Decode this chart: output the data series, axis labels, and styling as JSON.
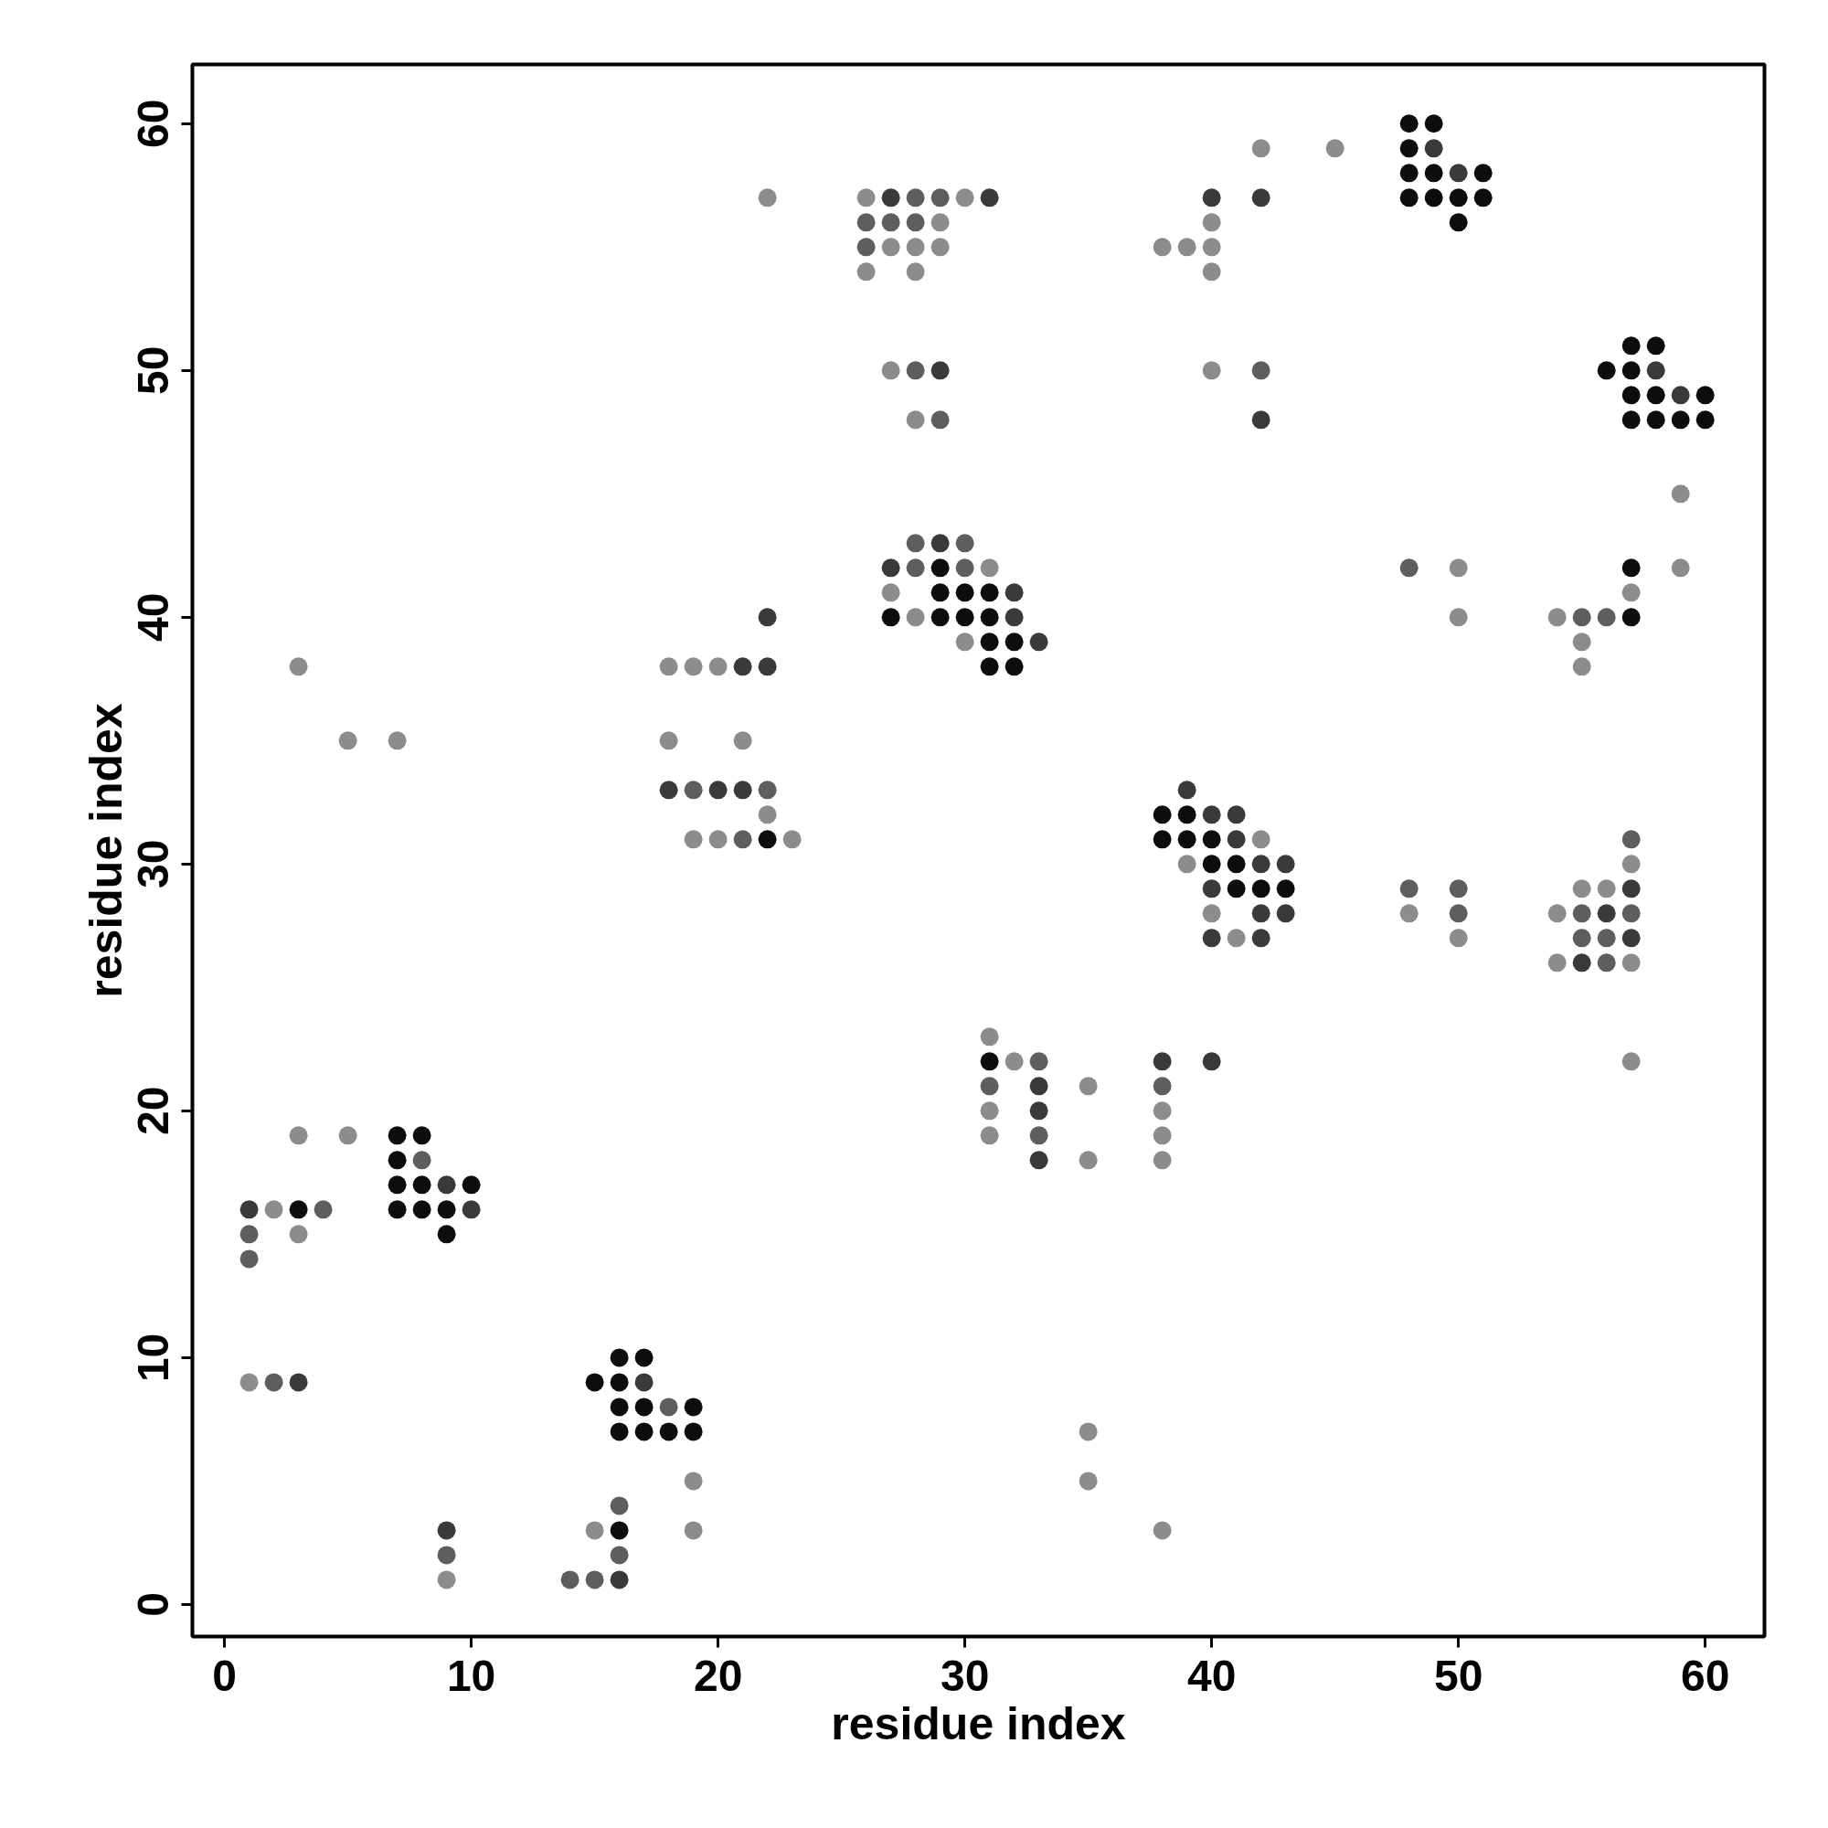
{
  "chart_data": {
    "type": "scatter",
    "xlabel": "residue index",
    "ylabel": "residue index",
    "xlim": [
      -1.3,
      62.4
    ],
    "ylim": [
      -1.3,
      62.4
    ],
    "xticks": [
      0,
      10,
      20,
      30,
      40,
      50,
      60
    ],
    "yticks": [
      0,
      10,
      20,
      30,
      40,
      50,
      60
    ],
    "marker": "circle",
    "grid": false,
    "series": [
      {
        "color": "#0d0d0d",
        "x": [
          48,
          49,
          48,
          48,
          49,
          51,
          48,
          49,
          50,
          51,
          50,
          57,
          58,
          56,
          57,
          57,
          58,
          60,
          57,
          58,
          59,
          60,
          29,
          57,
          29,
          30,
          31,
          27,
          29,
          30,
          31,
          57,
          31,
          32,
          31,
          32,
          22,
          38,
          39,
          38,
          39,
          40,
          40,
          41,
          41,
          42,
          43,
          31,
          7,
          8,
          7,
          7,
          8,
          10,
          3,
          7,
          8,
          9,
          9,
          16,
          17,
          15,
          16,
          16,
          17,
          19,
          16,
          17,
          18,
          19,
          16
        ],
        "values": [
          60,
          60,
          59,
          58,
          58,
          58,
          57,
          57,
          57,
          57,
          56,
          51,
          51,
          50,
          50,
          49,
          49,
          49,
          48,
          48,
          48,
          48,
          42,
          42,
          41,
          41,
          41,
          40,
          40,
          40,
          40,
          40,
          39,
          39,
          38,
          38,
          31,
          32,
          32,
          31,
          31,
          31,
          30,
          30,
          29,
          29,
          29,
          22,
          19,
          19,
          18,
          17,
          17,
          17,
          16,
          16,
          16,
          16,
          15,
          10,
          10,
          9,
          9,
          8,
          8,
          8,
          7,
          7,
          7,
          7,
          3
        ]
      },
      {
        "color": "#3a3a3a",
        "x": [
          49,
          50,
          27,
          31,
          40,
          42,
          29,
          59,
          42,
          58,
          29,
          27,
          32,
          32,
          22,
          33,
          21,
          22,
          18,
          20,
          21,
          39,
          40,
          41,
          41,
          42,
          43,
          40,
          57,
          42,
          43,
          56,
          40,
          42,
          57,
          55,
          33,
          33,
          33,
          38,
          40,
          9,
          10,
          1,
          3,
          17,
          9,
          16
        ],
        "values": [
          59,
          58,
          57,
          57,
          57,
          57,
          50,
          49,
          48,
          50,
          43,
          42,
          41,
          40,
          40,
          39,
          38,
          38,
          33,
          33,
          33,
          33,
          32,
          32,
          31,
          30,
          30,
          29,
          29,
          28,
          28,
          28,
          27,
          27,
          27,
          26,
          21,
          20,
          18,
          22,
          22,
          17,
          16,
          16,
          9,
          9,
          3,
          1
        ]
      },
      {
        "color": "#5e5e5e",
        "x": [
          28,
          29,
          26,
          27,
          28,
          26,
          28,
          42,
          29,
          28,
          30,
          28,
          30,
          48,
          56,
          55,
          19,
          22,
          21,
          57,
          48,
          50,
          50,
          55,
          57,
          55,
          56,
          56,
          33,
          31,
          38,
          33,
          8,
          4,
          1,
          1,
          2,
          18,
          16,
          9,
          16,
          14,
          15
        ],
        "values": [
          57,
          57,
          56,
          56,
          56,
          55,
          50,
          50,
          48,
          43,
          43,
          42,
          42,
          42,
          40,
          40,
          33,
          33,
          31,
          31,
          29,
          29,
          28,
          28,
          28,
          27,
          27,
          26,
          22,
          21,
          21,
          19,
          18,
          16,
          15,
          14,
          9,
          8,
          4,
          2,
          2,
          1,
          1
        ]
      },
      {
        "color": "#8c8c8c",
        "x": [
          42,
          45,
          22,
          26,
          30,
          40,
          29,
          27,
          28,
          29,
          38,
          39,
          40,
          26,
          28,
          40,
          27,
          40,
          28,
          59,
          31,
          50,
          59,
          27,
          57,
          28,
          50,
          54,
          30,
          55,
          3,
          18,
          19,
          20,
          55,
          5,
          7,
          18,
          21,
          22,
          19,
          20,
          23,
          42,
          39,
          57,
          55,
          56,
          40,
          48,
          54,
          41,
          50,
          54,
          57,
          31,
          32,
          57,
          35,
          31,
          38,
          3,
          5,
          31,
          38,
          35,
          38,
          2,
          3,
          1,
          35,
          19,
          35,
          15,
          19,
          38,
          9
        ],
        "values": [
          59,
          59,
          57,
          57,
          57,
          56,
          56,
          55,
          55,
          55,
          55,
          55,
          55,
          54,
          54,
          54,
          50,
          50,
          48,
          45,
          42,
          42,
          42,
          41,
          41,
          40,
          40,
          40,
          39,
          39,
          38,
          38,
          38,
          38,
          38,
          35,
          35,
          35,
          35,
          32,
          31,
          31,
          31,
          31,
          30,
          30,
          29,
          29,
          28,
          28,
          28,
          27,
          27,
          26,
          26,
          23,
          22,
          22,
          21,
          20,
          20,
          19,
          19,
          19,
          19,
          18,
          18,
          16,
          15,
          9,
          7,
          5,
          5,
          3,
          3,
          3,
          1
        ]
      }
    ]
  }
}
